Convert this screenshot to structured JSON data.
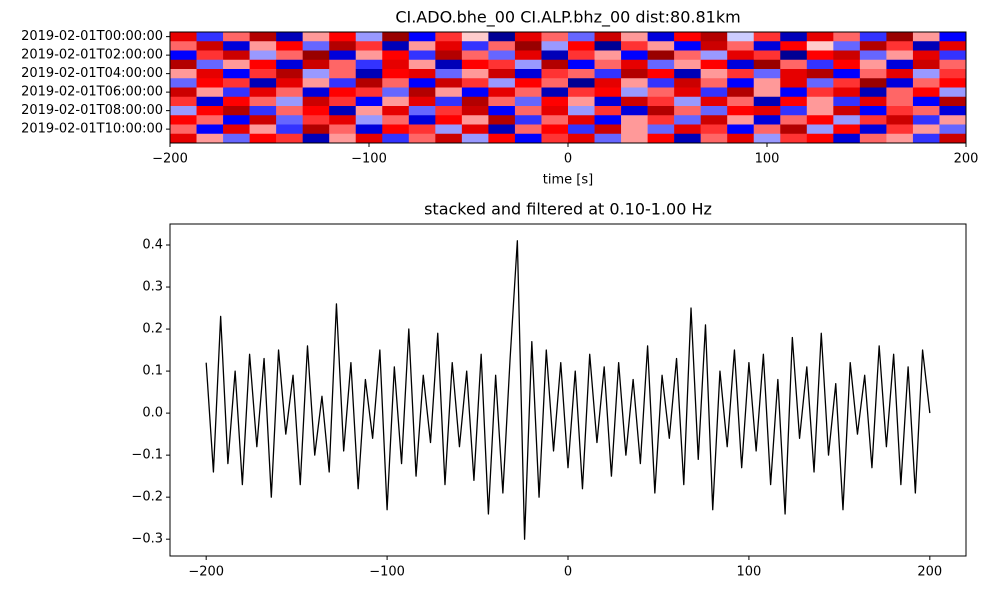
{
  "chart_data": [
    {
      "type": "heatmap",
      "title": "CI.ADO.bhe_00 CI.ALP.bhz_00  dist:80.81km",
      "xlabel": "time [s]",
      "colormap": "seismic",
      "vlim": [
        -1,
        1
      ],
      "categories": [
        "2019-02-01T00:00:00",
        null,
        "2019-02-01T02:00:00",
        null,
        "2019-02-01T04:00:00",
        null,
        "2019-02-01T06:00:00",
        null,
        "2019-02-01T08:00:00",
        null,
        "2019-02-01T10:00:00",
        null
      ],
      "xlim": [
        -200,
        200
      ],
      "xticks": [
        {
          "value": -200,
          "label": "−200"
        },
        {
          "value": -100,
          "label": "−100"
        },
        0,
        100,
        200
      ],
      "values": [
        [
          0.6,
          -0.4,
          0.3,
          0.8,
          -0.7,
          0.2,
          0.5,
          -0.2,
          0.9,
          -0.5,
          0.4,
          0.1,
          -0.8,
          0.6,
          0.3,
          -0.3,
          0.7,
          0.2,
          -0.6,
          0.5,
          0.8,
          -0.1,
          0.4,
          -0.7,
          0.6,
          0.3,
          -0.4,
          0.9,
          0.2,
          -0.5
        ],
        [
          0.3,
          0.7,
          -0.6,
          0.2,
          0.5,
          -0.3,
          0.8,
          0.4,
          -0.7,
          0.2,
          0.6,
          -0.4,
          0.3,
          0.9,
          -0.2,
          0.5,
          -0.8,
          0.4,
          0.2,
          -0.5,
          0.7,
          0.3,
          -0.6,
          0.5,
          0.1,
          -0.3,
          0.8,
          0.4,
          -0.7,
          0.6
        ],
        [
          -0.5,
          0.4,
          0.7,
          -0.2,
          0.3,
          0.9,
          -0.6,
          0.2,
          0.5,
          -0.4,
          0.8,
          0.3,
          -0.3,
          0.6,
          -0.7,
          0.4,
          0.2,
          -0.5,
          0.9,
          0.3,
          -0.2,
          0.6,
          0.4,
          -0.8,
          0.5,
          0.7,
          -0.3,
          0.2,
          0.6,
          -0.4
        ],
        [
          0.8,
          -0.3,
          0.2,
          0.5,
          -0.6,
          0.7,
          0.3,
          -0.4,
          0.6,
          0.2,
          -0.7,
          0.5,
          0.4,
          -0.2,
          0.8,
          -0.5,
          0.3,
          0.6,
          -0.3,
          0.2,
          0.5,
          -0.6,
          0.9,
          0.3,
          -0.4,
          0.5,
          0.2,
          -0.6,
          0.7,
          0.3
        ],
        [
          0.2,
          0.6,
          -0.5,
          0.4,
          0.8,
          -0.2,
          0.3,
          -0.7,
          0.5,
          0.6,
          -0.3,
          0.2,
          0.7,
          -0.6,
          0.4,
          0.3,
          -0.4,
          0.8,
          0.5,
          -0.7,
          0.2,
          0.4,
          -0.3,
          0.6,
          0.8,
          -0.5,
          0.3,
          0.6,
          -0.2,
          0.4
        ],
        [
          -0.3,
          0.5,
          0.4,
          -0.7,
          0.6,
          0.2,
          -0.4,
          0.8,
          0.3,
          -0.5,
          0.7,
          0.4,
          -0.2,
          0.5,
          0.3,
          -0.8,
          0.6,
          0.2,
          -0.4,
          0.7,
          0.3,
          -0.5,
          0.2,
          0.6,
          -0.3,
          0.4,
          0.9,
          -0.6,
          0.3,
          0.5
        ],
        [
          0.7,
          0.2,
          -0.4,
          0.6,
          0.3,
          -0.6,
          0.5,
          0.4,
          -0.3,
          0.8,
          0.2,
          -0.5,
          0.6,
          0.3,
          -0.7,
          0.4,
          0.5,
          -0.2,
          0.3,
          0.6,
          -0.4,
          0.8,
          0.2,
          -0.5,
          0.4,
          0.6,
          -0.7,
          0.3,
          0.5,
          -0.2
        ],
        [
          0.4,
          -0.6,
          0.5,
          0.3,
          -0.2,
          0.7,
          0.4,
          -0.5,
          0.2,
          0.6,
          -0.4,
          0.8,
          0.3,
          -0.3,
          0.5,
          0.2,
          -0.6,
          0.7,
          0.4,
          -0.2,
          0.6,
          0.3,
          -0.7,
          0.5,
          0.2,
          -0.4,
          0.6,
          0.3,
          -0.5,
          0.8
        ],
        [
          -0.2,
          0.5,
          0.8,
          -0.4,
          0.3,
          0.5,
          -0.7,
          0.2,
          0.6,
          -0.3,
          0.4,
          0.7,
          -0.5,
          0.3,
          0.6,
          -0.2,
          0.4,
          -0.6,
          0.8,
          0.3,
          -0.3,
          0.5,
          0.6,
          -0.4,
          0.2,
          0.7,
          -0.5,
          0.4,
          0.3,
          -0.6
        ],
        [
          0.5,
          0.3,
          -0.5,
          0.7,
          -0.3,
          0.4,
          0.6,
          -0.2,
          0.3,
          -0.6,
          0.5,
          0.2,
          0.8,
          -0.4,
          0.3,
          0.6,
          -0.5,
          0.2,
          0.4,
          -0.3,
          0.7,
          0.2,
          -0.6,
          0.3,
          0.5,
          -0.2,
          0.4,
          0.7,
          -0.4,
          0.2
        ],
        [
          0.3,
          -0.5,
          0.6,
          0.2,
          -0.4,
          0.8,
          0.3,
          -0.6,
          0.5,
          0.4,
          -0.2,
          0.6,
          -0.7,
          0.3,
          0.5,
          -0.4,
          0.7,
          0.2,
          -0.3,
          0.6,
          0.4,
          -0.5,
          0.3,
          0.8,
          -0.2,
          0.5,
          -0.6,
          0.4,
          0.2,
          -0.3
        ],
        [
          0.6,
          0.2,
          -0.3,
          0.5,
          0.4,
          -0.7,
          0.2,
          0.6,
          -0.4,
          0.3,
          0.7,
          -0.2,
          0.5,
          -0.5,
          0.4,
          0.6,
          -0.3,
          0.2,
          0.5,
          -0.7,
          0.3,
          0.6,
          -0.2,
          0.4,
          0.5,
          -0.6,
          0.3,
          0.2,
          -0.4,
          0.7
        ]
      ]
    },
    {
      "type": "line",
      "title": "stacked and filtered at 0.10-1.00 Hz",
      "xlim": [
        -220,
        220
      ],
      "ylim": [
        -0.34,
        0.45
      ],
      "xticks": [
        {
          "value": -200,
          "label": "−200"
        },
        {
          "value": -100,
          "label": "−100"
        },
        0,
        100,
        200
      ],
      "yticks": [
        {
          "value": -0.3,
          "label": "−0.3"
        },
        {
          "value": -0.2,
          "label": "−0.2"
        },
        {
          "value": -0.1,
          "label": "−0.1"
        },
        {
          "value": 0,
          "label": "0.0"
        },
        0.1,
        0.2,
        0.3,
        0.4
      ],
      "x": [
        -200,
        -196,
        -192,
        -188,
        -184,
        -180,
        -176,
        -172,
        -168,
        -164,
        -160,
        -156,
        -152,
        -148,
        -144,
        -140,
        -136,
        -132,
        -128,
        -124,
        -120,
        -116,
        -112,
        -108,
        -104,
        -100,
        -96,
        -92,
        -88,
        -84,
        -80,
        -76,
        -72,
        -68,
        -64,
        -60,
        -56,
        -52,
        -48,
        -44,
        -40,
        -36,
        -32,
        -28,
        -24,
        -20,
        -16,
        -12,
        -8,
        -4,
        0,
        4,
        8,
        12,
        16,
        20,
        24,
        28,
        32,
        36,
        40,
        44,
        48,
        52,
        56,
        60,
        64,
        68,
        72,
        76,
        80,
        84,
        88,
        92,
        96,
        100,
        104,
        108,
        112,
        116,
        120,
        124,
        128,
        132,
        136,
        140,
        144,
        148,
        152,
        156,
        160,
        164,
        168,
        172,
        176,
        180,
        184,
        188,
        192,
        196,
        200
      ],
      "series": [
        {
          "color": "#000000",
          "values": [
            0.12,
            -0.14,
            0.23,
            -0.12,
            0.1,
            -0.17,
            0.14,
            -0.08,
            0.13,
            -0.2,
            0.15,
            -0.05,
            0.09,
            -0.17,
            0.16,
            -0.1,
            0.04,
            -0.14,
            0.26,
            -0.09,
            0.12,
            -0.18,
            0.08,
            -0.06,
            0.15,
            -0.23,
            0.11,
            -0.12,
            0.2,
            -0.15,
            0.09,
            -0.07,
            0.19,
            -0.17,
            0.12,
            -0.08,
            0.1,
            -0.16,
            0.14,
            -0.24,
            0.09,
            -0.19,
            0.13,
            0.41,
            -0.3,
            0.17,
            -0.2,
            0.15,
            -0.09,
            0.12,
            -0.13,
            0.1,
            -0.18,
            0.14,
            -0.07,
            0.11,
            -0.15,
            0.12,
            -0.1,
            0.08,
            -0.12,
            0.16,
            -0.19,
            0.09,
            -0.06,
            0.13,
            -0.17,
            0.25,
            -0.11,
            0.21,
            -0.23,
            0.1,
            -0.08,
            0.15,
            -0.13,
            0.12,
            -0.09,
            0.14,
            -0.17,
            0.08,
            -0.24,
            0.18,
            -0.06,
            0.11,
            -0.14,
            0.19,
            -0.1,
            0.07,
            -0.23,
            0.12,
            -0.05,
            0.09,
            -0.13,
            0.16,
            -0.08,
            0.14,
            -0.17,
            0.11,
            -0.19,
            0.15,
            0.0
          ]
        }
      ]
    }
  ]
}
